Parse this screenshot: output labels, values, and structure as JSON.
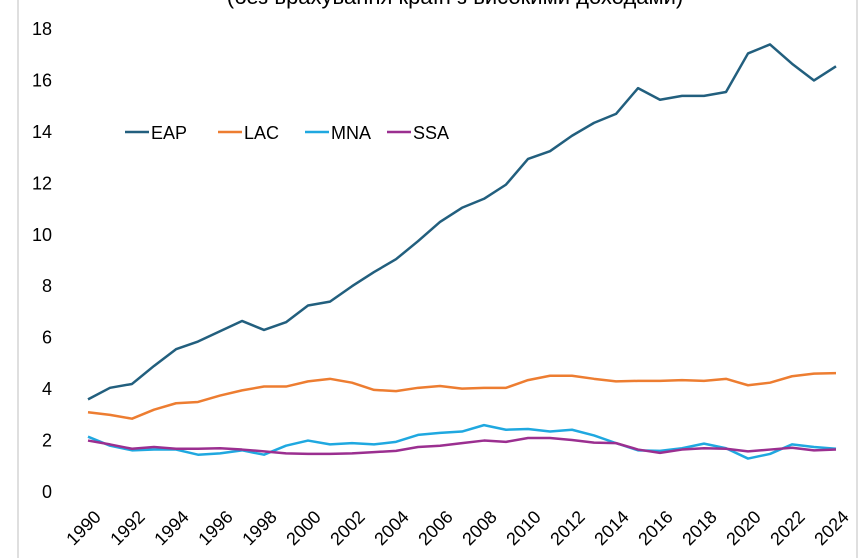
{
  "chart_data": {
    "type": "line",
    "subtitle": "(без врахування країн з високими доходами)",
    "x": [
      1990,
      1991,
      1992,
      1993,
      1994,
      1995,
      1996,
      1997,
      1998,
      1999,
      2000,
      2001,
      2002,
      2003,
      2004,
      2005,
      2006,
      2007,
      2008,
      2009,
      2010,
      2011,
      2012,
      2013,
      2014,
      2015,
      2016,
      2017,
      2018,
      2019,
      2020,
      2021,
      2022,
      2023,
      2024
    ],
    "xlim": [
      1990,
      2024
    ],
    "xticks": [
      1990,
      1992,
      1994,
      1996,
      1998,
      2000,
      2002,
      2004,
      2006,
      2008,
      2010,
      2012,
      2014,
      2016,
      2018,
      2020,
      2022,
      2024
    ],
    "ylim": [
      0,
      18
    ],
    "yticks": [
      0,
      2,
      4,
      6,
      8,
      10,
      12,
      14,
      16,
      18
    ],
    "grid": false,
    "legend": "upper left",
    "series": [
      {
        "name": "EAP",
        "color": "#225f7e",
        "values": [
          3.6,
          4.05,
          4.2,
          4.9,
          5.55,
          5.85,
          6.25,
          6.65,
          6.3,
          6.6,
          7.25,
          7.4,
          8.0,
          8.55,
          9.05,
          9.75,
          10.5,
          11.05,
          11.4,
          11.95,
          12.95,
          13.25,
          13.85,
          14.35,
          14.7,
          15.7,
          15.25,
          15.4,
          15.4,
          15.55,
          17.05,
          17.4,
          16.65,
          16.0,
          16.55
        ]
      },
      {
        "name": "LAC",
        "color": "#ed7d31",
        "values": [
          3.1,
          3.0,
          2.85,
          3.2,
          3.45,
          3.5,
          3.75,
          3.95,
          4.1,
          4.1,
          4.3,
          4.4,
          4.25,
          3.97,
          3.92,
          4.05,
          4.12,
          4.02,
          4.05,
          4.05,
          4.35,
          4.52,
          4.52,
          4.4,
          4.3,
          4.32,
          4.32,
          4.35,
          4.32,
          4.4,
          4.15,
          4.25,
          4.5,
          4.6,
          4.62
        ]
      },
      {
        "name": "MNA",
        "color": "#1fa8e0",
        "values": [
          2.15,
          1.8,
          1.62,
          1.65,
          1.65,
          1.45,
          1.5,
          1.62,
          1.45,
          1.8,
          2.0,
          1.85,
          1.9,
          1.85,
          1.95,
          2.22,
          2.3,
          2.35,
          2.6,
          2.42,
          2.45,
          2.35,
          2.42,
          2.2,
          1.9,
          1.62,
          1.6,
          1.7,
          1.88,
          1.7,
          1.3,
          1.48,
          1.85,
          1.75,
          1.68
        ]
      },
      {
        "name": "SSA",
        "color": "#9b2f90",
        "values": [
          2.0,
          1.85,
          1.68,
          1.75,
          1.68,
          1.68,
          1.7,
          1.65,
          1.58,
          1.5,
          1.48,
          1.48,
          1.5,
          1.55,
          1.6,
          1.75,
          1.8,
          1.9,
          2.0,
          1.95,
          2.1,
          2.1,
          2.02,
          1.92,
          1.9,
          1.65,
          1.52,
          1.65,
          1.7,
          1.68,
          1.58,
          1.65,
          1.72,
          1.62,
          1.65
        ]
      }
    ]
  }
}
